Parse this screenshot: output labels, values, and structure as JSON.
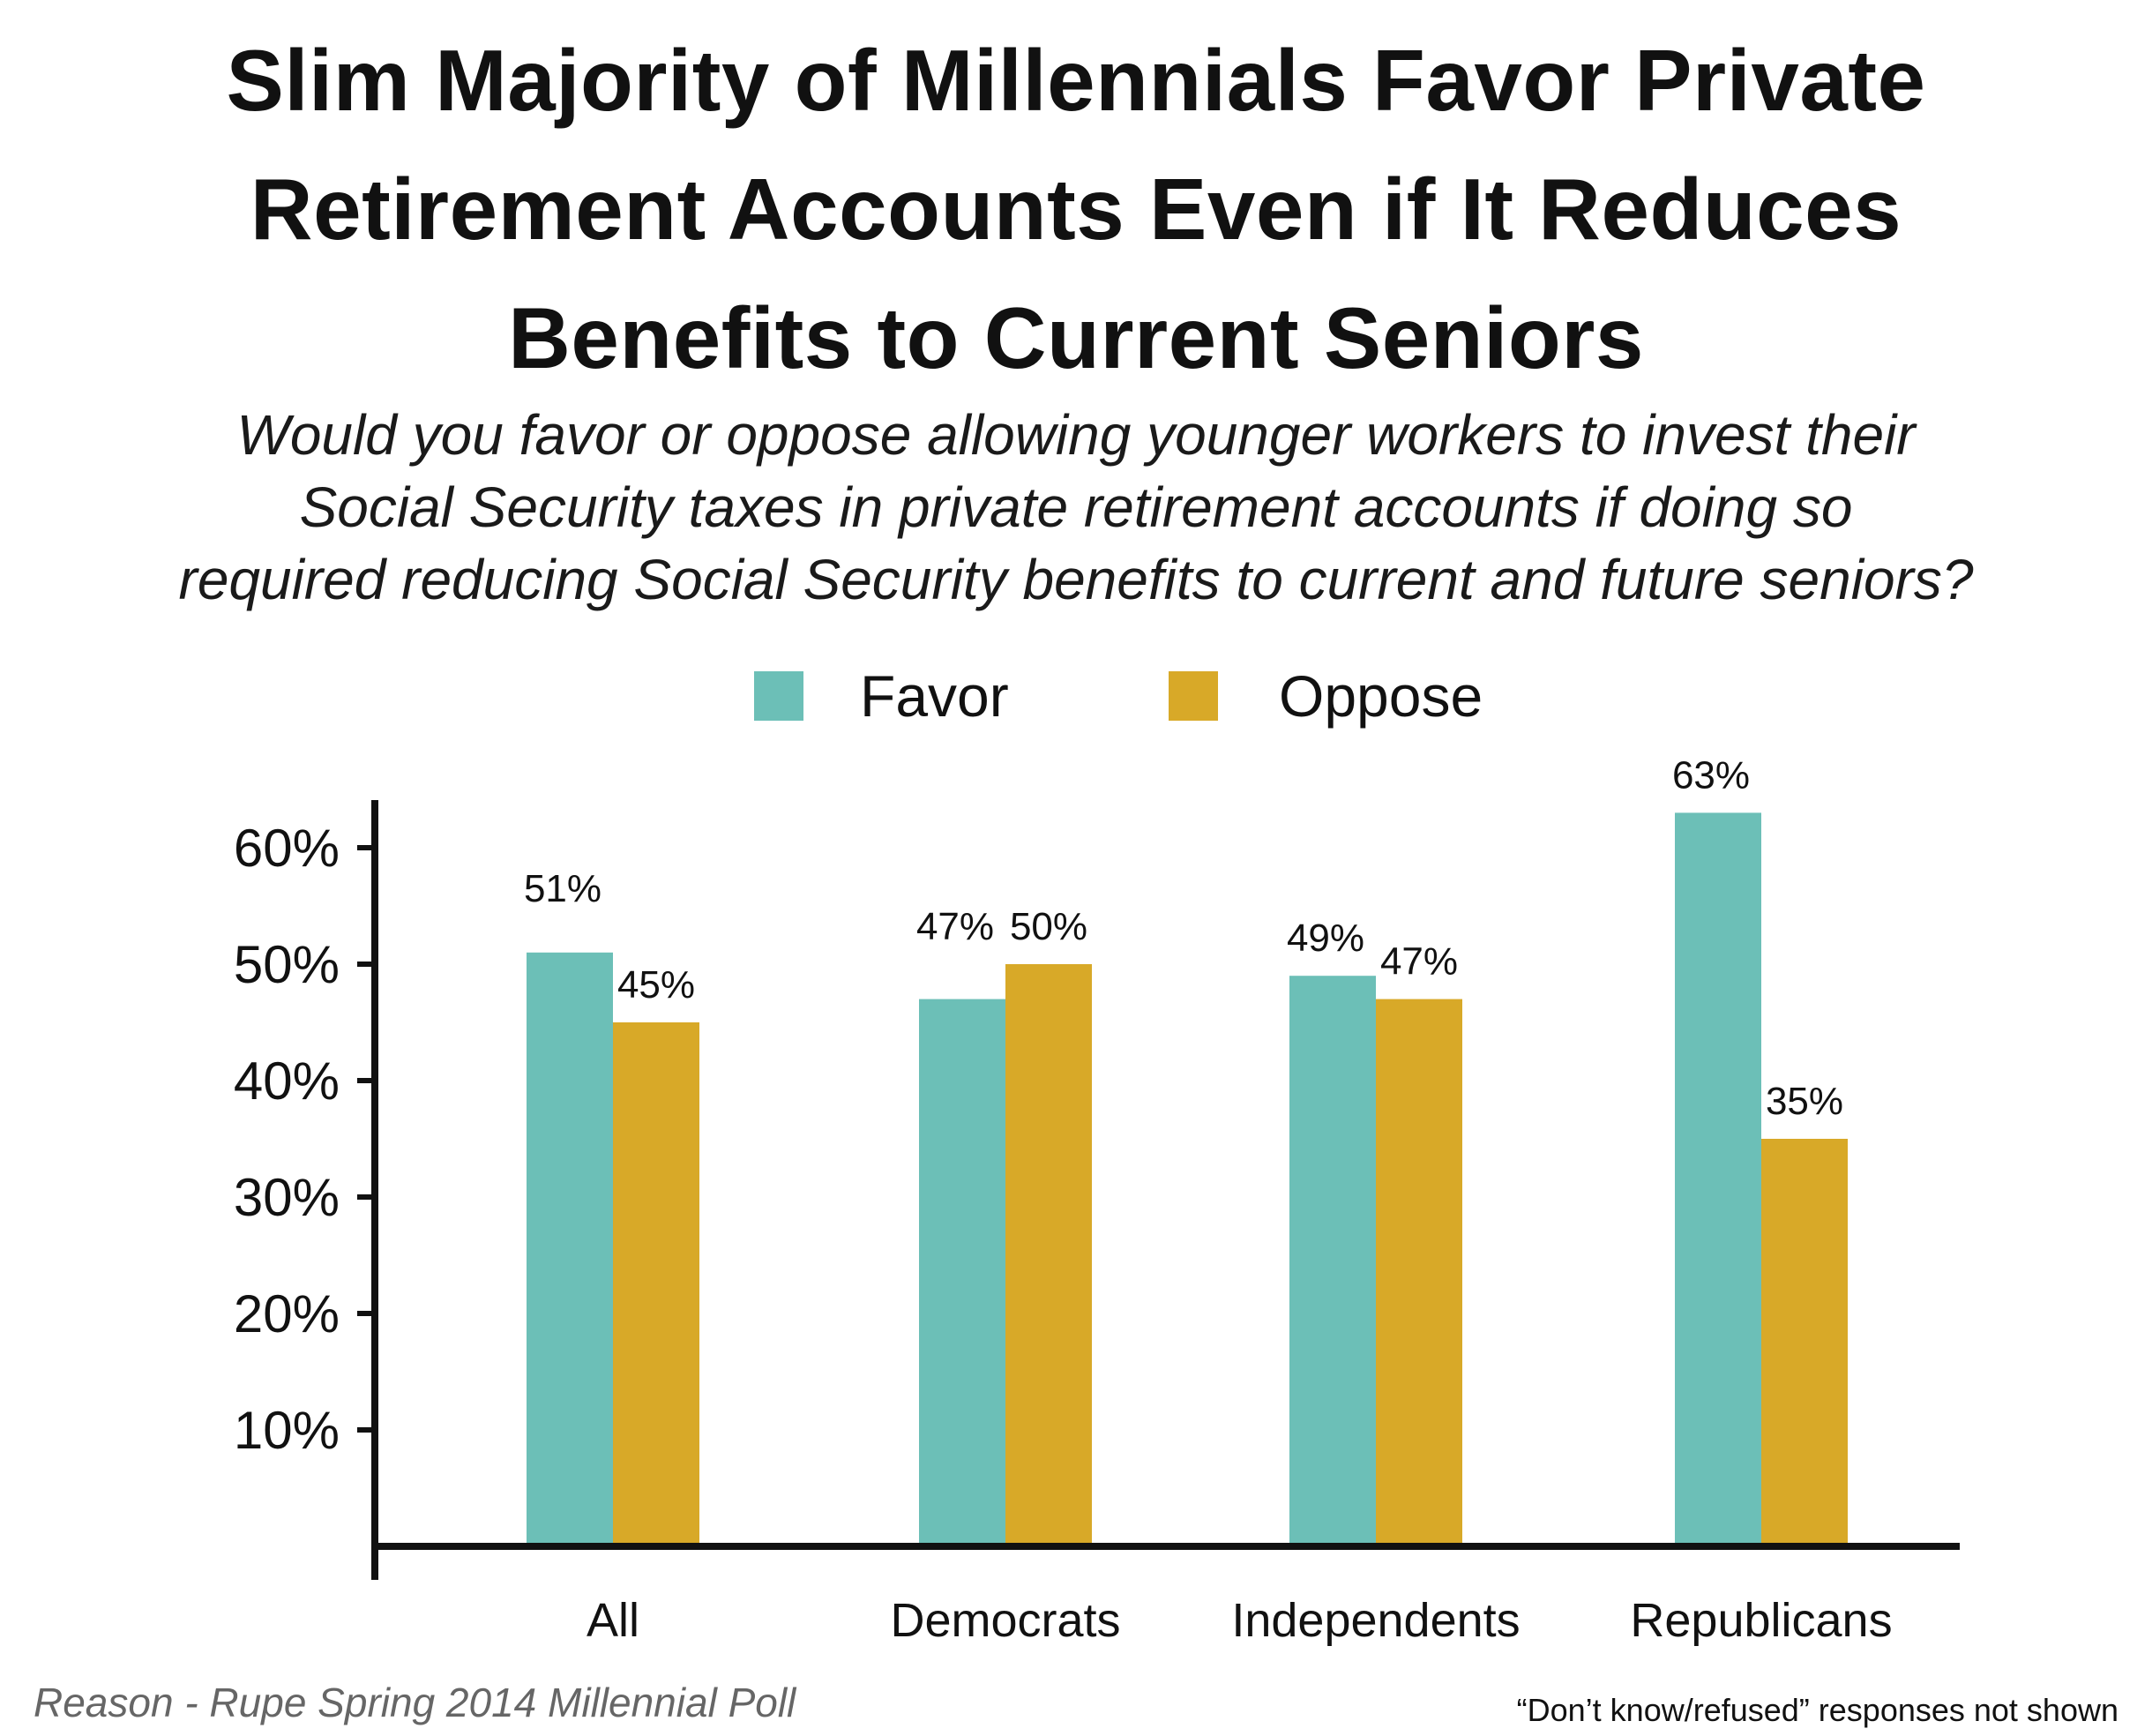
{
  "title_lines": [
    "Slim Majority of Millennials Favor Private",
    "Retirement Accounts Even if It Reduces",
    "Benefits to Current Seniors"
  ],
  "subtitle_lines": [
    "Would you favor or oppose allowing younger workers to invest their",
    "Social Security taxes in private retirement accounts if doing so",
    "required reducing Social Security benefits to current and future seniors?"
  ],
  "footer": {
    "source": "Reason - Rupe Spring 2014 Millennial Poll",
    "note": "“Don’t know/refused” responses not shown"
  },
  "chart_data": {
    "type": "bar",
    "categories": [
      "All",
      "Democrats",
      "Independents",
      "Republicans"
    ],
    "series": [
      {
        "name": "Favor",
        "color": "#6cbfb7",
        "values": [
          51,
          47,
          49,
          63
        ],
        "labels": [
          "51%",
          "47%",
          "49%",
          "63%"
        ]
      },
      {
        "name": "Oppose",
        "color": "#d8a928",
        "values": [
          45,
          50,
          47,
          35
        ],
        "labels": [
          "45%",
          "50%",
          "47%",
          "35%"
        ]
      }
    ],
    "ylim": [
      0,
      64
    ],
    "yticks": [
      10,
      20,
      30,
      40,
      50,
      60
    ],
    "ytick_labels": [
      "10%",
      "20%",
      "30%",
      "40%",
      "50%",
      "60%"
    ],
    "xlabel": "",
    "ylabel": "",
    "legend_position": "top-center",
    "grid": false
  }
}
